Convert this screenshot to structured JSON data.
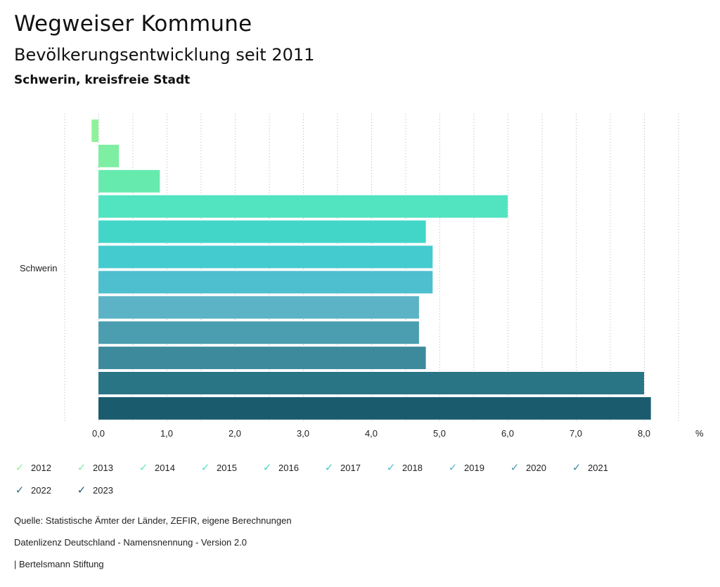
{
  "header": {
    "title": "Wegweiser Kommune",
    "subtitle": "Bevölkerungsentwicklung seit 2011",
    "region": "Schwerin, kreisfreie Stadt"
  },
  "chart_data": {
    "type": "bar",
    "orientation": "horizontal",
    "categories": [
      "Schwerin"
    ],
    "series": [
      {
        "name": "2012",
        "color": "#8ef29a",
        "values": [
          -0.1
        ]
      },
      {
        "name": "2013",
        "color": "#7eeea2",
        "values": [
          0.3
        ]
      },
      {
        "name": "2014",
        "color": "#67eaae",
        "values": [
          0.9
        ]
      },
      {
        "name": "2015",
        "color": "#52e3c1",
        "values": [
          6.0
        ]
      },
      {
        "name": "2016",
        "color": "#42d6c9",
        "values": [
          4.8
        ]
      },
      {
        "name": "2017",
        "color": "#44cbd0",
        "values": [
          4.9
        ]
      },
      {
        "name": "2018",
        "color": "#4ebfcf",
        "values": [
          4.9
        ]
      },
      {
        "name": "2019",
        "color": "#5cb3c6",
        "values": [
          4.7
        ]
      },
      {
        "name": "2020",
        "color": "#4b9db0",
        "values": [
          4.7
        ]
      },
      {
        "name": "2021",
        "color": "#3d8a9c",
        "values": [
          4.8
        ]
      },
      {
        "name": "2022",
        "color": "#2a7585",
        "values": [
          8.0
        ]
      },
      {
        "name": "2023",
        "color": "#1a5c6e",
        "values": [
          8.1
        ]
      }
    ],
    "xlim": [
      -0.5,
      8.5
    ],
    "xticks": [
      "0,0",
      "1,0",
      "2,0",
      "3,0",
      "4,0",
      "5,0",
      "6,0",
      "7,0",
      "8,0"
    ],
    "xunit": "%",
    "grid": true,
    "legend_position": "bottom"
  },
  "footer": {
    "source": "Quelle: Statistische Ämter der Länder, ZEFIR, eigene Berechnungen",
    "license": "Datenlizenz Deutschland - Namensnennung - Version 2.0",
    "brand": "| Bertelsmann Stiftung"
  }
}
